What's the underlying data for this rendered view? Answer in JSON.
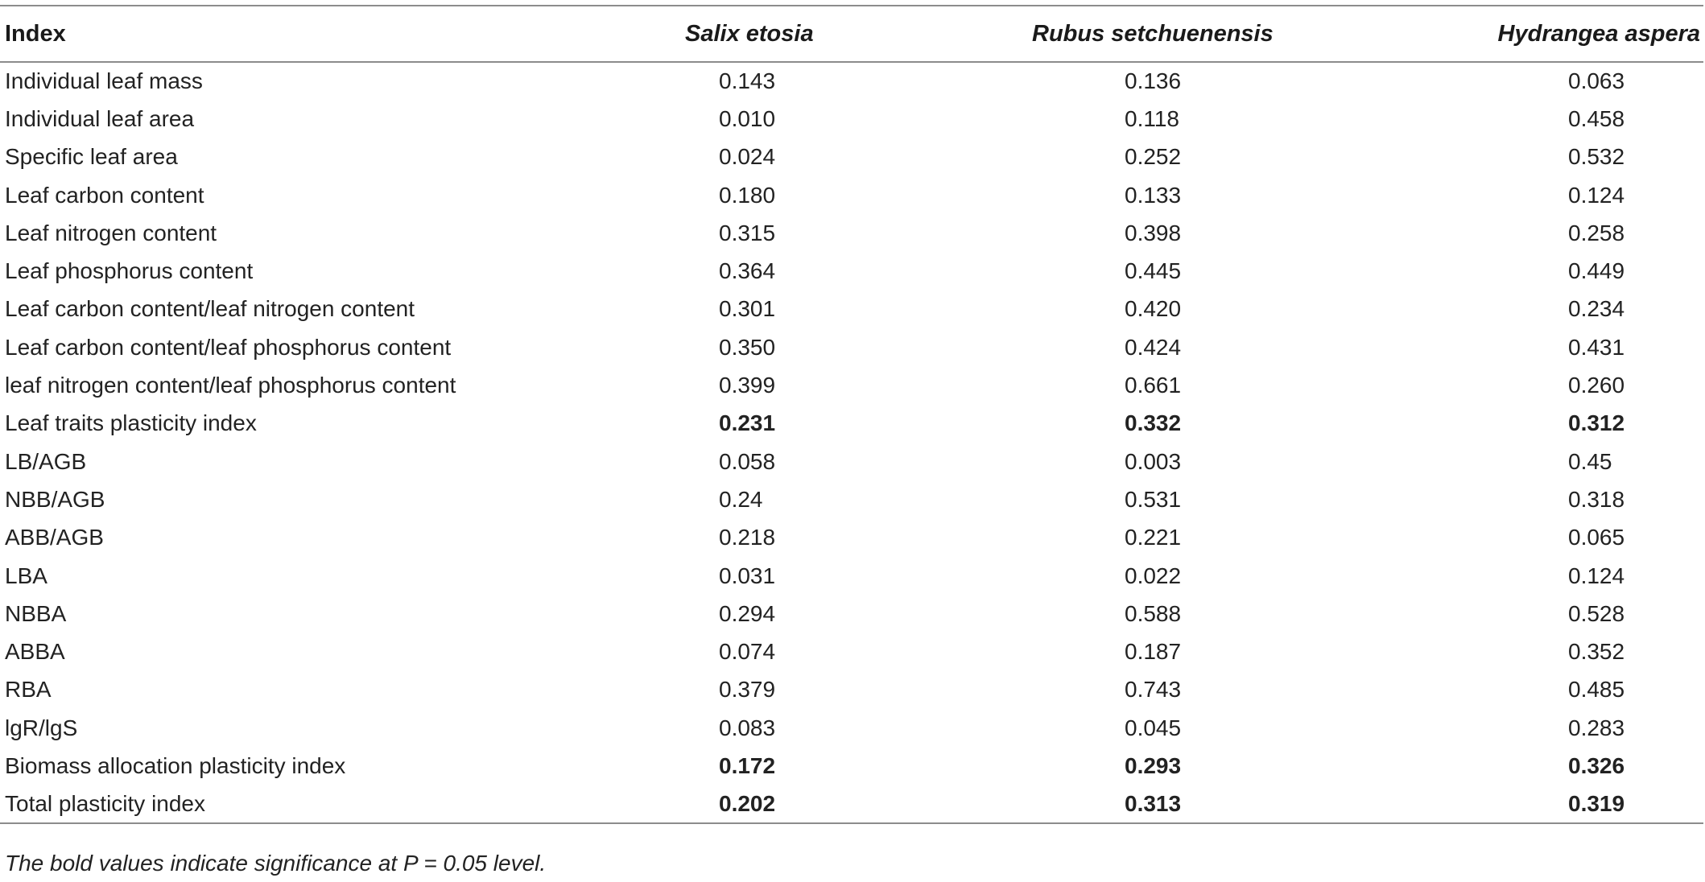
{
  "table": {
    "headers": [
      "Index",
      "Salix etosia",
      "Rubus setchuenensis",
      "Hydrangea aspera"
    ],
    "rows": [
      {
        "label": "Individual leaf mass",
        "values": [
          "0.143",
          "0.136",
          "0.063"
        ],
        "bold": false
      },
      {
        "label": "Individual leaf area",
        "values": [
          "0.010",
          "0.118",
          "0.458"
        ],
        "bold": false
      },
      {
        "label": "Specific leaf area",
        "values": [
          "0.024",
          "0.252",
          "0.532"
        ],
        "bold": false
      },
      {
        "label": "Leaf carbon content",
        "values": [
          "0.180",
          "0.133",
          "0.124"
        ],
        "bold": false
      },
      {
        "label": "Leaf nitrogen content",
        "values": [
          "0.315",
          "0.398",
          "0.258"
        ],
        "bold": false
      },
      {
        "label": "Leaf phosphorus content",
        "values": [
          "0.364",
          "0.445",
          "0.449"
        ],
        "bold": false
      },
      {
        "label": "Leaf carbon content/leaf nitrogen content",
        "values": [
          "0.301",
          "0.420",
          "0.234"
        ],
        "bold": false
      },
      {
        "label": "Leaf carbon content/leaf phosphorus content",
        "values": [
          "0.350",
          "0.424",
          "0.431"
        ],
        "bold": false
      },
      {
        "label": "leaf nitrogen content/leaf phosphorus content",
        "values": [
          "0.399",
          "0.661",
          "0.260"
        ],
        "bold": false
      },
      {
        "label": "Leaf traits plasticity index",
        "values": [
          "0.231",
          "0.332",
          "0.312"
        ],
        "bold": true
      },
      {
        "label": "LB/AGB",
        "values": [
          "0.058",
          "0.003",
          "0.45"
        ],
        "bold": false
      },
      {
        "label": "NBB/AGB",
        "values": [
          "0.24",
          "0.531",
          "0.318"
        ],
        "bold": false
      },
      {
        "label": "ABB/AGB",
        "values": [
          "0.218",
          "0.221",
          "0.065"
        ],
        "bold": false
      },
      {
        "label": "LBA",
        "values": [
          "0.031",
          "0.022",
          "0.124"
        ],
        "bold": false
      },
      {
        "label": "NBBA",
        "values": [
          "0.294",
          "0.588",
          "0.528"
        ],
        "bold": false
      },
      {
        "label": "ABBA",
        "values": [
          "0.074",
          "0.187",
          "0.352"
        ],
        "bold": false
      },
      {
        "label": "RBA",
        "values": [
          "0.379",
          "0.743",
          "0.485"
        ],
        "bold": false
      },
      {
        "label": "lgR/lgS",
        "values": [
          "0.083",
          "0.045",
          "0.283"
        ],
        "bold": false
      },
      {
        "label": "Biomass allocation plasticity index",
        "values": [
          "0.172",
          "0.293",
          "0.326"
        ],
        "bold": true
      },
      {
        "label": "Total plasticity index",
        "values": [
          "0.202",
          "0.313",
          "0.319"
        ],
        "bold": true
      }
    ]
  },
  "footnote": "The bold values indicate significance at P = 0.05 level."
}
